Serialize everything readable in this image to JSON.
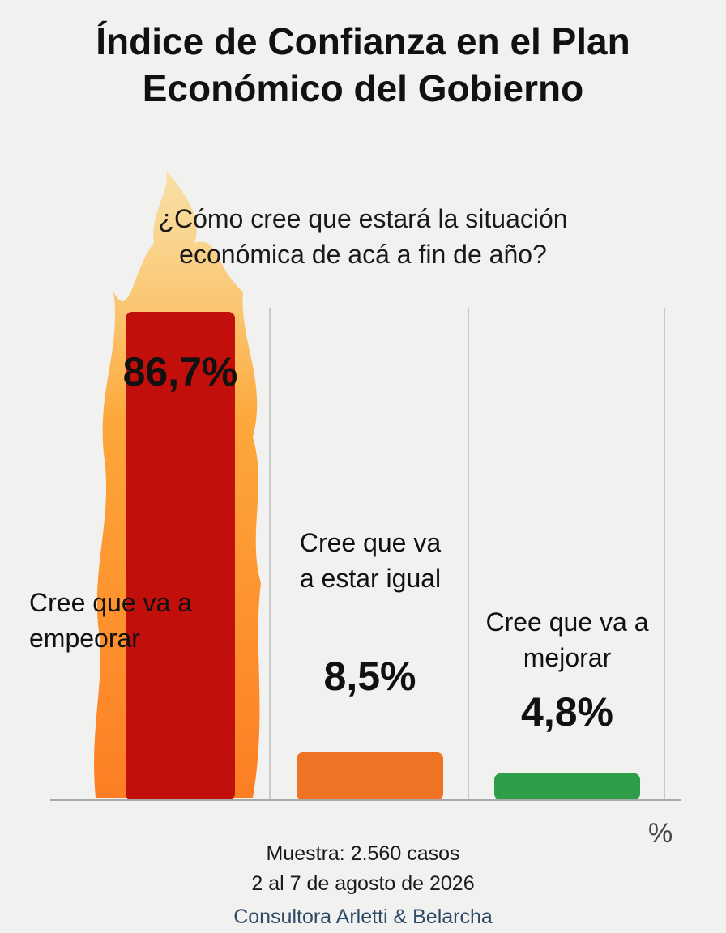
{
  "chart_data": {
    "type": "bar",
    "title": "Índice de Confianza en el Plan Económico del Gobierno",
    "subtitle": "¿Cómo cree que estará la situación económica de acá a fin de año?",
    "categories": [
      "Cree que va a empeorar",
      "Cree que va a estar igual",
      "Cree que va a mejorar"
    ],
    "values": [
      86.7,
      8.5,
      4.8
    ],
    "value_labels": [
      "86,7%",
      "8,5%",
      "4,8%"
    ],
    "colors": [
      "#c20f0b",
      "#f07224",
      "#2f9e48"
    ],
    "unit": "%",
    "footer": [
      "Muestra: 2.560 casos",
      "2 al 7 de agosto de 2026",
      "Consultora Arletti & Belarcha"
    ]
  }
}
